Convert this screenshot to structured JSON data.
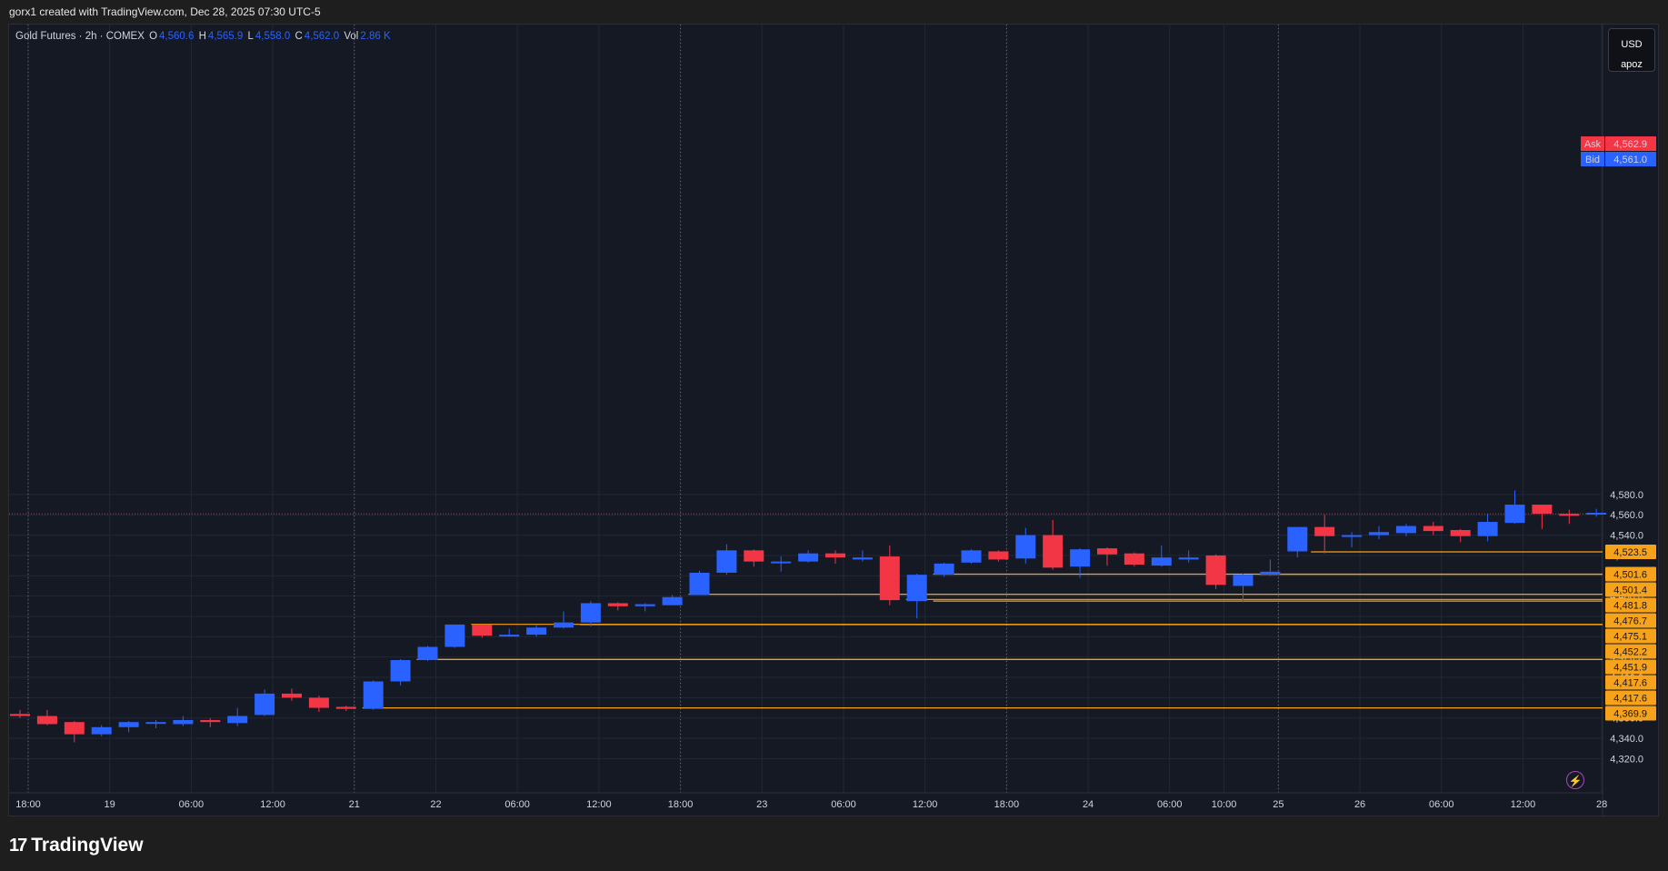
{
  "caption": "gorx1 created with TradingView.com, Dec 28, 2025 07:30 UTC-5",
  "legend": {
    "symbol": "Gold Futures · 2h · COMEX",
    "o_label": "O",
    "o": "4,560.6",
    "h_label": "H",
    "h": "4,565.9",
    "l_label": "L",
    "l": "4,558.0",
    "c_label": "C",
    "c": "4,562.0",
    "vol_label": "Vol",
    "vol": "2.86 K"
  },
  "currency": {
    "code": "USD",
    "user": "apoz"
  },
  "brand": "TradingView",
  "colors": {
    "up": "#2962ff",
    "down": "#f23645",
    "level": "#f7a21b",
    "grid": "#232836",
    "ask": "#f23645",
    "bid": "#2962ff"
  },
  "chart_data": {
    "type": "candlestick",
    "title": "Gold Futures · 2h · COMEX",
    "ylim": [
      4310,
      4595
    ],
    "y_ticks": [
      "4,320.0",
      "4,340.0",
      "4,360.0",
      "4,380.0",
      "4,400.0",
      "4,420.0",
      "4,440.0",
      "4,460.0",
      "4,480.0",
      "4,500.0",
      "4,520.0",
      "4,540.0",
      "4,560.0",
      "4,580.0"
    ],
    "x_ticks": [
      {
        "i": 0.3,
        "label": "18:00"
      },
      {
        "i": 3.3,
        "label": "19"
      },
      {
        "i": 6.3,
        "label": "06:00"
      },
      {
        "i": 9.3,
        "label": "12:00"
      },
      {
        "i": 12.3,
        "label": "21"
      },
      {
        "i": 15.3,
        "label": "22"
      },
      {
        "i": 18.3,
        "label": "06:00"
      },
      {
        "i": 21.3,
        "label": "12:00"
      },
      {
        "i": 24.3,
        "label": "18:00"
      },
      {
        "i": 27.3,
        "label": "23"
      },
      {
        "i": 30.3,
        "label": "06:00"
      },
      {
        "i": 33.3,
        "label": "12:00"
      },
      {
        "i": 36.3,
        "label": "18:00"
      },
      {
        "i": 39.3,
        "label": "24"
      },
      {
        "i": 42.3,
        "label": "06:00"
      },
      {
        "i": 44.3,
        "label": "10:00"
      },
      {
        "i": 46.3,
        "label": "25"
      },
      {
        "i": 49.3,
        "label": "26"
      },
      {
        "i": 52.3,
        "label": "06:00"
      },
      {
        "i": 55.3,
        "label": "12:00"
      },
      {
        "i": 58.2,
        "label": "28"
      }
    ],
    "session_breaks": [
      0.3,
      12.3,
      24.3,
      36.3,
      46.3
    ],
    "candles": [
      {
        "o": 4364,
        "h": 4368,
        "l": 4360,
        "c": 4362
      },
      {
        "o": 4362,
        "h": 4368,
        "l": 4353,
        "c": 4354
      },
      {
        "o": 4356,
        "h": 4357,
        "l": 4336,
        "c": 4344
      },
      {
        "o": 4344,
        "h": 4353,
        "l": 4342,
        "c": 4351
      },
      {
        "o": 4351,
        "h": 4357,
        "l": 4346,
        "c": 4356
      },
      {
        "o": 4356,
        "h": 4358,
        "l": 4350,
        "c": 4356
      },
      {
        "o": 4354,
        "h": 4362,
        "l": 4352,
        "c": 4358
      },
      {
        "o": 4358,
        "h": 4360,
        "l": 4351,
        "c": 4356
      },
      {
        "o": 4355,
        "h": 4370,
        "l": 4352,
        "c": 4362
      },
      {
        "o": 4363,
        "h": 4388,
        "l": 4362,
        "c": 4384
      },
      {
        "o": 4384,
        "h": 4389,
        "l": 4377,
        "c": 4380
      },
      {
        "o": 4380,
        "h": 4382,
        "l": 4366,
        "c": 4370
      },
      {
        "o": 4371,
        "h": 4372,
        "l": 4367,
        "c": 4369
      },
      {
        "o": 4369,
        "h": 4397,
        "l": 4368,
        "c": 4396
      },
      {
        "o": 4396,
        "h": 4418,
        "l": 4392,
        "c": 4417
      },
      {
        "o": 4417,
        "h": 4431,
        "l": 4416,
        "c": 4430
      },
      {
        "o": 4430,
        "h": 4452,
        "l": 4429,
        "c": 4452
      },
      {
        "o": 4452,
        "h": 4452,
        "l": 4439,
        "c": 4441
      },
      {
        "o": 4441,
        "h": 4448,
        "l": 4440,
        "c": 4442
      },
      {
        "o": 4442,
        "h": 4452,
        "l": 4440,
        "c": 4449
      },
      {
        "o": 4449,
        "h": 4465,
        "l": 4448,
        "c": 4454
      },
      {
        "o": 4454,
        "h": 4475,
        "l": 4450,
        "c": 4473
      },
      {
        "o": 4473,
        "h": 4474,
        "l": 4466,
        "c": 4470
      },
      {
        "o": 4470,
        "h": 4473,
        "l": 4465,
        "c": 4472
      },
      {
        "o": 4471,
        "h": 4481,
        "l": 4471,
        "c": 4479
      },
      {
        "o": 4481,
        "h": 4505,
        "l": 4481,
        "c": 4503
      },
      {
        "o": 4503,
        "h": 4531,
        "l": 4501,
        "c": 4525
      },
      {
        "o": 4525,
        "h": 4526,
        "l": 4509,
        "c": 4514
      },
      {
        "o": 4514,
        "h": 4519,
        "l": 4504,
        "c": 4514
      },
      {
        "o": 4514,
        "h": 4525,
        "l": 4513,
        "c": 4522
      },
      {
        "o": 4522,
        "h": 4525,
        "l": 4512,
        "c": 4518
      },
      {
        "o": 4516,
        "h": 4525,
        "l": 4514,
        "c": 4518
      },
      {
        "o": 4519,
        "h": 4530,
        "l": 4471,
        "c": 4476
      },
      {
        "o": 4475,
        "h": 4502,
        "l": 4458,
        "c": 4501
      },
      {
        "o": 4501,
        "h": 4513,
        "l": 4499,
        "c": 4512
      },
      {
        "o": 4513,
        "h": 4526,
        "l": 4512,
        "c": 4525
      },
      {
        "o": 4524,
        "h": 4525,
        "l": 4514,
        "c": 4516
      },
      {
        "o": 4517,
        "h": 4547,
        "l": 4512,
        "c": 4540
      },
      {
        "o": 4540,
        "h": 4555,
        "l": 4506,
        "c": 4508
      },
      {
        "o": 4509,
        "h": 4527,
        "l": 4498,
        "c": 4526
      },
      {
        "o": 4527,
        "h": 4528,
        "l": 4510,
        "c": 4521
      },
      {
        "o": 4522,
        "h": 4523,
        "l": 4509,
        "c": 4511
      },
      {
        "o": 4510,
        "h": 4530,
        "l": 4509,
        "c": 4518
      },
      {
        "o": 4516,
        "h": 4525,
        "l": 4513,
        "c": 4518
      },
      {
        "o": 4520,
        "h": 4521,
        "l": 4487,
        "c": 4491
      },
      {
        "o": 4490,
        "h": 4502,
        "l": 4474,
        "c": 4501
      },
      {
        "o": 4501,
        "h": 4516,
        "l": 4500,
        "c": 4504
      },
      {
        "o": 4524,
        "h": 4548,
        "l": 4518,
        "c": 4548
      },
      {
        "o": 4548,
        "h": 4560,
        "l": 4522,
        "c": 4539
      },
      {
        "o": 4539,
        "h": 4543,
        "l": 4528,
        "c": 4540
      },
      {
        "o": 4540,
        "h": 4549,
        "l": 4536,
        "c": 4543
      },
      {
        "o": 4542,
        "h": 4551,
        "l": 4539,
        "c": 4549
      },
      {
        "o": 4549,
        "h": 4553,
        "l": 4540,
        "c": 4544
      },
      {
        "o": 4545,
        "h": 4546,
        "l": 4533,
        "c": 4539
      },
      {
        "o": 4539,
        "h": 4561,
        "l": 4534,
        "c": 4553
      },
      {
        "o": 4552,
        "h": 4584,
        "l": 4551,
        "c": 4570
      },
      {
        "o": 4570,
        "h": 4570,
        "l": 4546,
        "c": 4561
      },
      {
        "o": 4561,
        "h": 4565,
        "l": 4551,
        "c": 4559
      },
      {
        "o": 4560.6,
        "h": 4565.9,
        "l": 4558,
        "c": 4562
      }
    ],
    "levels": [
      {
        "price": 4523.5,
        "from": 47.5
      },
      {
        "price": 4501.6,
        "from": 33.6
      },
      {
        "price": 4501.4,
        "from": 45.6
      },
      {
        "price": 4481.8,
        "from": 24.6
      },
      {
        "price": 4476.7,
        "from": 32.6
      },
      {
        "price": 4475.1,
        "from": 33.6
      },
      {
        "price": 4452.2,
        "from": 16.6
      },
      {
        "price": 4451.9,
        "from": 20.6
      },
      {
        "price": 4417.6,
        "from": 14.6
      },
      {
        "price": 4417.6,
        "from": 14.6
      },
      {
        "price": 4369.9,
        "from": 12.6
      }
    ],
    "ask": {
      "label": "Ask",
      "price": 4562.9,
      "text": "4,562.9"
    },
    "bid": {
      "label": "Bid",
      "price": 4561.0,
      "text": "4,561.0"
    }
  }
}
